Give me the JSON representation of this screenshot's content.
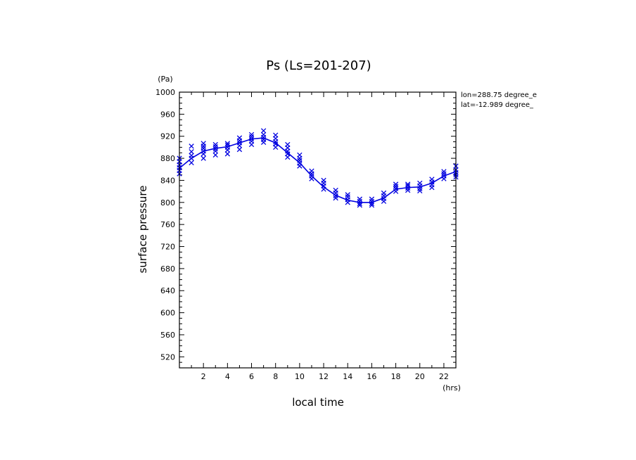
{
  "chart_data": {
    "type": "scatter",
    "title": "Ps (Ls=201-207)",
    "xlabel": "local time",
    "ylabel": "surface pressure",
    "x_unit": "(hrs)",
    "y_unit": "(Pa)",
    "annotations": [
      "lon=288.75 degree_e",
      "lat=-12.989 degree_"
    ],
    "xlim": [
      0,
      23
    ],
    "ylim": [
      500,
      1000
    ],
    "x_ticks": [
      "2",
      "4",
      "6",
      "8",
      "10",
      "12",
      "14",
      "16",
      "18",
      "20",
      "22"
    ],
    "y_ticks": [
      "520",
      "560",
      "600",
      "640",
      "680",
      "720",
      "760",
      "800",
      "840",
      "880",
      "920",
      "960",
      "1000"
    ],
    "marker_color": "#0000e0",
    "series": [
      {
        "style": "line",
        "x": [
          0,
          1,
          2,
          3,
          4,
          5,
          6,
          7,
          8,
          9,
          10,
          11,
          12,
          13,
          14,
          15,
          16,
          17,
          18,
          19,
          20,
          21,
          22,
          23
        ],
        "values": [
          862,
          880,
          893,
          898,
          901,
          908,
          915,
          917,
          908,
          890,
          872,
          848,
          828,
          813,
          804,
          800,
          800,
          808,
          824,
          827,
          828,
          835,
          848,
          856
        ]
      },
      {
        "style": "markers",
        "x": [
          0,
          0,
          0,
          0,
          0,
          0,
          1,
          1,
          1,
          1,
          1,
          2,
          2,
          2,
          2,
          2,
          2,
          3,
          3,
          3,
          3,
          3,
          4,
          4,
          4,
          4,
          4,
          5,
          5,
          5,
          5,
          5,
          6,
          6,
          6,
          6,
          6,
          7,
          7,
          7,
          7,
          7,
          8,
          8,
          8,
          8,
          8,
          9,
          9,
          9,
          9,
          9,
          10,
          10,
          10,
          10,
          10,
          11,
          11,
          11,
          11,
          12,
          12,
          12,
          12,
          13,
          13,
          13,
          13,
          14,
          14,
          14,
          14,
          15,
          15,
          15,
          15,
          16,
          16,
          16,
          16,
          17,
          17,
          17,
          17,
          18,
          18,
          18,
          18,
          19,
          19,
          19,
          19,
          20,
          20,
          20,
          20,
          21,
          21,
          21,
          21,
          22,
          22,
          22,
          22,
          23,
          23,
          23,
          23,
          23
        ],
        "values": [
          852,
          858,
          863,
          868,
          874,
          880,
          872,
          880,
          885,
          892,
          902,
          880,
          888,
          893,
          898,
          902,
          907,
          886,
          893,
          897,
          901,
          905,
          888,
          895,
          900,
          904,
          907,
          896,
          903,
          908,
          912,
          917,
          905,
          911,
          915,
          919,
          923,
          909,
          914,
          918,
          923,
          930,
          900,
          906,
          910,
          916,
          922,
          882,
          888,
          893,
          899,
          905,
          866,
          871,
          876,
          880,
          886,
          843,
          848,
          852,
          857,
          824,
          830,
          835,
          840,
          808,
          812,
          817,
          822,
          800,
          805,
          810,
          814,
          795,
          798,
          802,
          806,
          795,
          798,
          802,
          806,
          802,
          807,
          812,
          817,
          820,
          825,
          829,
          833,
          822,
          826,
          830,
          833,
          821,
          825,
          830,
          835,
          827,
          832,
          837,
          842,
          843,
          848,
          852,
          856,
          846,
          850,
          854,
          859,
          866
        ]
      }
    ]
  }
}
